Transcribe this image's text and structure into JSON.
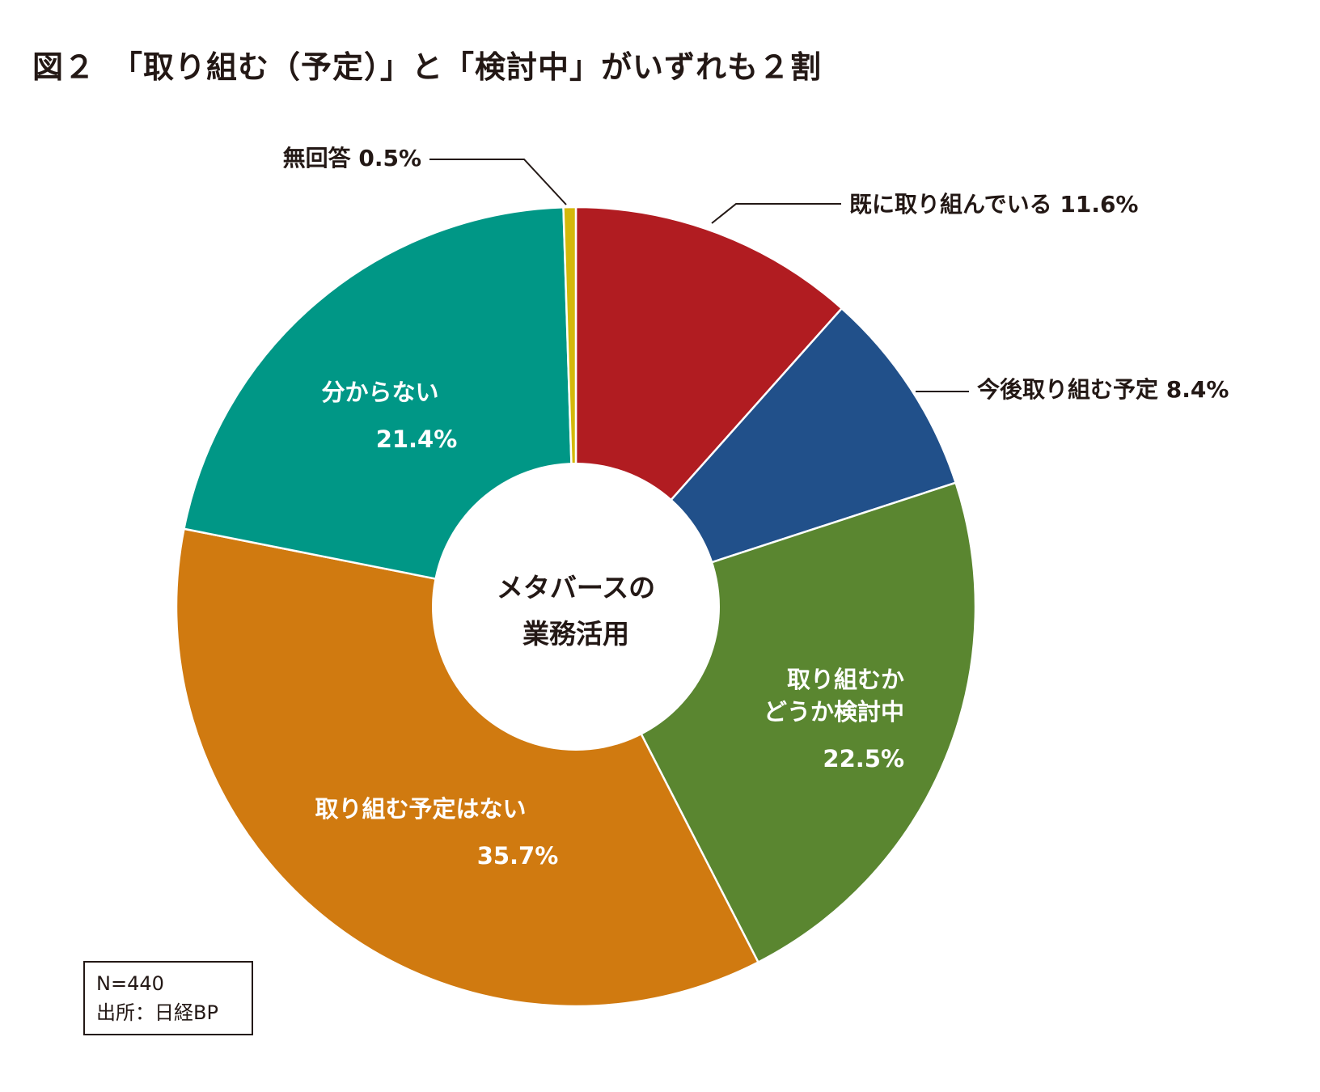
{
  "title": "図２　「取り組む（予定）」と「検討中」がいずれも２割",
  "chart_data": {
    "type": "pie",
    "variant": "donut",
    "center_label": [
      "メタバースの",
      "業務活用"
    ],
    "slices": [
      {
        "label": "既に取り組んでいる",
        "value": 11.6,
        "value_label": "11.6%",
        "color": "#b11c21",
        "label_position": "outside"
      },
      {
        "label": "今後取り組む予定",
        "value": 8.4,
        "value_label": "8.4%",
        "color": "#21508a",
        "label_position": "outside"
      },
      {
        "label": "取り組むかどうか検討中",
        "label_lines": [
          "取り組むか",
          "どうか検討中"
        ],
        "value": 22.5,
        "value_label": "22.5%",
        "color": "#5a8630",
        "label_position": "inside"
      },
      {
        "label": "取り組む予定はない",
        "label_lines": [
          "取り組む予定はない"
        ],
        "value": 35.7,
        "value_label": "35.7%",
        "color": "#d07a10",
        "label_position": "inside"
      },
      {
        "label": "分からない",
        "label_lines": [
          "分からない"
        ],
        "value": 21.4,
        "value_label": "21.4%",
        "color": "#009786",
        "label_position": "inside"
      },
      {
        "label": "無回答",
        "value": 0.5,
        "value_label": "0.5%",
        "color": "#d4b80a",
        "label_position": "outside"
      }
    ]
  },
  "notes": {
    "sample": "N=440",
    "source": "出所：日経BP"
  }
}
